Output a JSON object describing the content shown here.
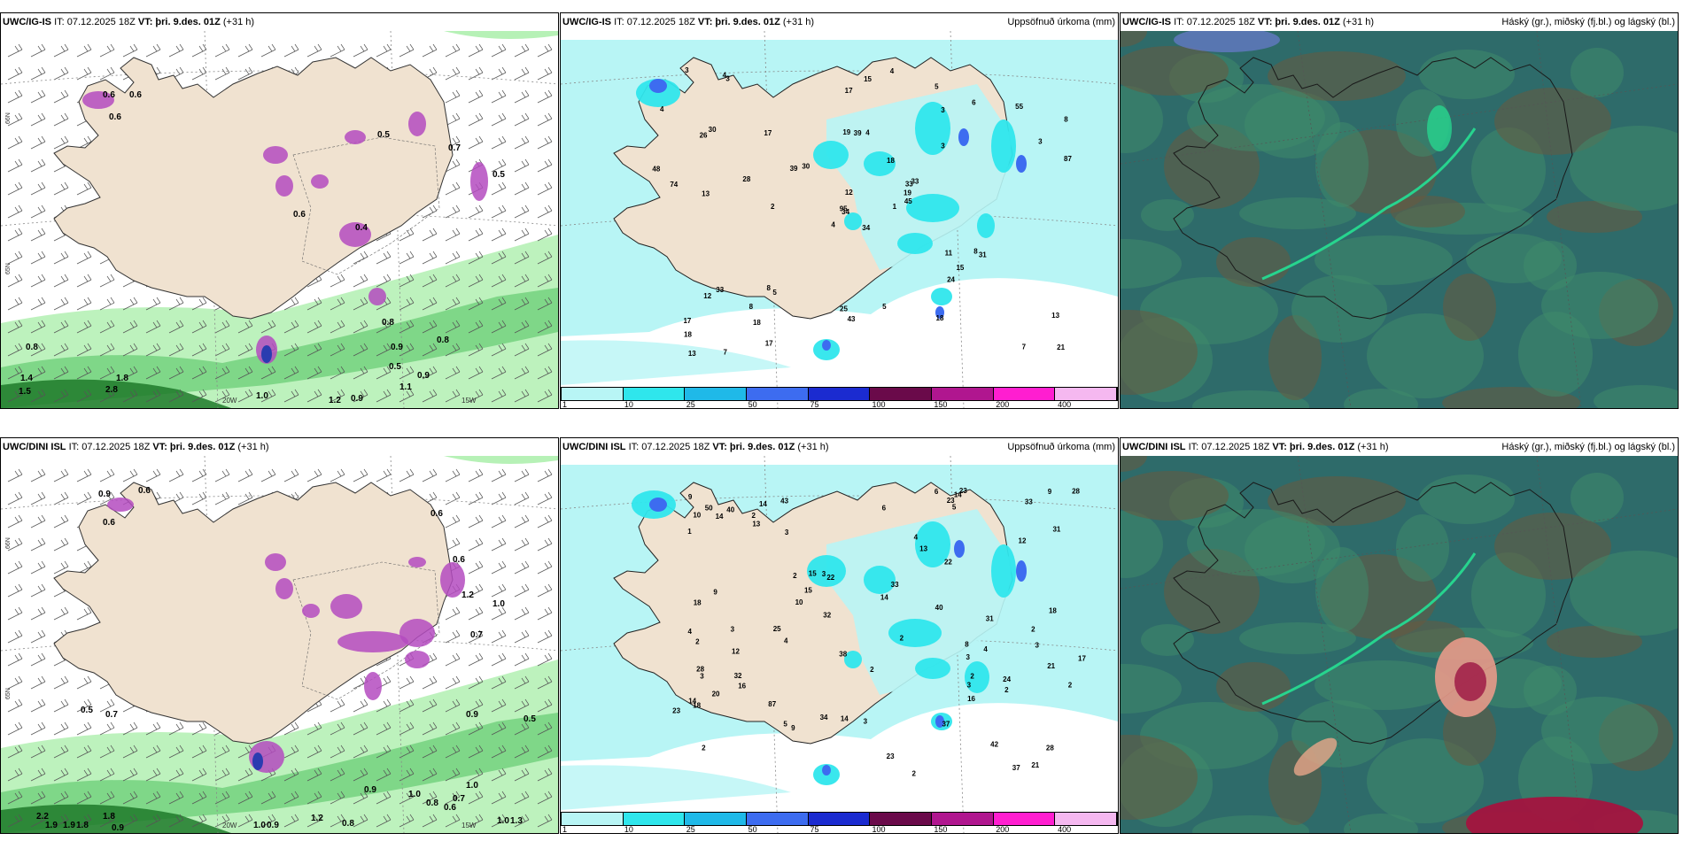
{
  "figure": "Iceland weather model comparison",
  "rows": [
    {
      "model": "UWC/IG-IS",
      "panels": [
        {
          "model": "UWC/IG-IS",
          "it": "IT: 07.12.2025 18Z",
          "vt_label": "VT:",
          "vt_value": "þri. 9.des. 01Z",
          "lead": "(+31 h)",
          "right_title": "",
          "labels": [
            "0.6",
            "0.6",
            "0.6",
            "0.5",
            "0.4",
            "0.6",
            "0.7",
            "0.5",
            "0.8",
            "1.5",
            "2.8",
            "1.8",
            "1.4",
            "1.0",
            "0.9",
            "0.8",
            "0.5",
            "0.9",
            "0.9",
            "1.2",
            "0.8",
            "1.1"
          ],
          "lon_labels": [
            "20W",
            "15W"
          ],
          "lat_labels": [
            "66N",
            "65N"
          ]
        },
        {
          "model": "UWC/IG-IS",
          "it": "IT: 07.12.2025 18Z",
          "vt_label": "VT:",
          "vt_value": "þri. 9.des. 01Z",
          "lead": "(+31 h)",
          "right_title": "Uppsöfnuð úrkoma (mm)",
          "numbers": [
            "34",
            "26",
            "34",
            "17",
            "33",
            "5",
            "5",
            "4",
            "3",
            "1",
            "3",
            "21",
            "13",
            "8",
            "4",
            "3",
            "7",
            "19",
            "18",
            "33",
            "30",
            "18",
            "18",
            "39",
            "33",
            "31",
            "30",
            "17",
            "74",
            "11",
            "87",
            "95",
            "25",
            "12",
            "17",
            "6",
            "8",
            "7",
            "13",
            "8",
            "4",
            "39",
            "28",
            "24",
            "17",
            "48",
            "19",
            "13",
            "43",
            "45",
            "12",
            "3",
            "4",
            "15",
            "18",
            "8",
            "4",
            "3",
            "5",
            "55",
            "15",
            "2"
          ],
          "colorbar_ticks": [
            "1",
            "10",
            "25",
            "50",
            "75",
            "100",
            "150",
            "200",
            "400"
          ]
        },
        {
          "model": "UWC/IG-IS",
          "it": "IT: 07.12.2025 18Z",
          "vt_label": "VT:",
          "vt_value": "þri. 9.des. 01Z",
          "lead": "(+31 h)",
          "right_title": "Háský (gr.), miðský (fj.bl.) og lágský (bl.)"
        }
      ]
    },
    {
      "model": "UWC/DINI ISL",
      "panels": [
        {
          "model": "UWC/DINI ISL",
          "it": "IT: 07.12.2025 18Z",
          "vt_label": "VT:",
          "vt_value": "þri. 9.des. 01Z",
          "lead": "(+31 h)",
          "right_title": "",
          "labels": [
            "0.9",
            "0.6",
            "0.6",
            "0.6",
            "0.6",
            "1.2",
            "1.0",
            "0.7",
            "0.5",
            "0.7",
            "2.2",
            "1.9",
            "1.9",
            "1.8",
            "1.8",
            "0.9",
            "1.0",
            "0.9",
            "1.2",
            "0.8",
            "0.9",
            "1.0",
            "0.8",
            "0.6",
            "0.7",
            "1.0",
            "0.5",
            "0.9",
            "1.3",
            "1.0"
          ],
          "lon_labels": [
            "20W",
            "15W"
          ],
          "lat_labels": [
            "66N",
            "65N"
          ]
        },
        {
          "model": "UWC/DINI ISL",
          "it": "IT: 07.12.2025 18Z",
          "vt_label": "VT:",
          "vt_value": "þri. 9.des. 01Z",
          "lead": "(+31 h)",
          "right_title": "Uppsöfnuð úrkoma (mm)",
          "numbers": [
            "3",
            "3",
            "2",
            "14",
            "22",
            "42",
            "18",
            "5",
            "2",
            "2",
            "1",
            "4",
            "10",
            "28",
            "34",
            "18",
            "2",
            "2",
            "3",
            "16",
            "28",
            "33",
            "10",
            "21",
            "6",
            "2",
            "2",
            "2",
            "13",
            "31",
            "23",
            "37",
            "15",
            "4",
            "2",
            "2",
            "3",
            "3",
            "3",
            "20",
            "31",
            "23",
            "21",
            "14",
            "24",
            "87",
            "23",
            "50",
            "40",
            "18",
            "17",
            "15",
            "9",
            "8",
            "16",
            "37",
            "22",
            "9",
            "12",
            "40",
            "4",
            "3",
            "33",
            "28",
            "6",
            "9",
            "38",
            "32",
            "25",
            "14",
            "13",
            "43",
            "32",
            "14",
            "14",
            "14",
            "3",
            "5",
            "9",
            "12",
            "2",
            "4",
            "23"
          ],
          "colorbar_ticks": [
            "1",
            "10",
            "25",
            "50",
            "75",
            "100",
            "150",
            "200",
            "400"
          ]
        },
        {
          "model": "UWC/DINI ISL",
          "it": "IT: 07.12.2025 18Z",
          "vt_label": "VT:",
          "vt_value": "þri. 9.des. 01Z",
          "lead": "(+31 h)",
          "right_title": "Háský (gr.), miðský (fj.bl.) og lágský (bl.)"
        }
      ]
    }
  ],
  "colors": {
    "land": "#f0e2d0",
    "precip_light": "#b8f5f5",
    "precip_cyan": "#2fe6ec",
    "precip_blue": "#3d6cf0",
    "precip_dark": "#1b2bd0",
    "purple": "#b44bc0",
    "green_light": "#b6f1b6",
    "green_dark": "#1f7a2a",
    "cloud_base": "#2e6b6a",
    "cloud_mid": "#3f8a6a",
    "cloud_brown": "#6a5a3e",
    "cloud_bright": "#27d48e",
    "colorbar": [
      "#b8f5f5",
      "#2fe6ec",
      "#1fb9e8",
      "#3d6cf0",
      "#1b2bd0",
      "#6a0a4a",
      "#b0168f",
      "#ff1ed0",
      "#f5b8f0"
    ]
  }
}
